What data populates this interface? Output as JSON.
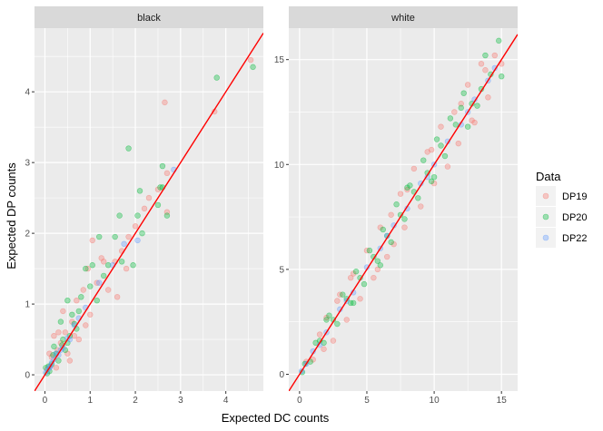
{
  "chart_data": {
    "type": "scatter",
    "xlabel": "Expected DC counts",
    "ylabel": "Expected DP counts",
    "reference_line": {
      "slope": 1,
      "intercept": 0,
      "color": "#ff0000"
    },
    "legend": {
      "title": "Data",
      "position": "right",
      "entries": [
        {
          "name": "DP19",
          "color": "#f8766d"
        },
        {
          "name": "DP20",
          "color": "#00ba38"
        },
        {
          "name": "DP22",
          "color": "#619cff"
        }
      ]
    },
    "panels": [
      {
        "label": "black",
        "xlim": [
          -0.23,
          4.83
        ],
        "ylim": [
          -0.23,
          4.9
        ],
        "xticks": [
          0,
          1,
          2,
          3,
          4
        ],
        "yticks": [
          0,
          1,
          2,
          3,
          4
        ],
        "x_tick_labels": [
          "0",
          "1",
          "2",
          "3",
          "4"
        ],
        "y_tick_labels": [
          "0",
          "1",
          "2",
          "3",
          "4"
        ],
        "series": [
          {
            "name": "DP19",
            "points": [
              [
                4.55,
                4.45
              ],
              [
                2.65,
                3.85
              ],
              [
                3.75,
                3.72
              ],
              [
                2.7,
                2.85
              ],
              [
                2.2,
                2.35
              ],
              [
                1.3,
                1.6
              ],
              [
                1.05,
                1.9
              ],
              [
                0.95,
                1.5
              ],
              [
                1.55,
                1.6
              ],
              [
                2.5,
                2.62
              ],
              [
                1.6,
                1.1
              ],
              [
                1.15,
                1.3
              ],
              [
                0.4,
                0.9
              ],
              [
                0.6,
                0.75
              ],
              [
                0.3,
                0.6
              ],
              [
                0.75,
                0.5
              ],
              [
                0.2,
                0.55
              ],
              [
                0.5,
                0.3
              ],
              [
                1.4,
                1.2
              ],
              [
                2.0,
                2.1
              ],
              [
                0.85,
                1.2
              ],
              [
                0.15,
                0.25
              ],
              [
                0.25,
                0.1
              ],
              [
                0.35,
                0.45
              ],
              [
                0.1,
                0.3
              ],
              [
                1.25,
                1.65
              ],
              [
                0.7,
                1.05
              ],
              [
                0.55,
                0.2
              ],
              [
                2.7,
                2.3
              ],
              [
                1.85,
                1.95
              ],
              [
                0.45,
                0.6
              ],
              [
                0.05,
                0.08
              ],
              [
                0.12,
                0.12
              ],
              [
                0.28,
                0.35
              ],
              [
                0.65,
                0.55
              ],
              [
                1.0,
                0.85
              ],
              [
                1.7,
                1.75
              ],
              [
                1.8,
                1.5
              ],
              [
                0.9,
                0.7
              ],
              [
                2.3,
                2.5
              ]
            ]
          },
          {
            "name": "DP20",
            "points": [
              [
                3.8,
                4.2
              ],
              [
                4.6,
                4.35
              ],
              [
                2.6,
                2.95
              ],
              [
                1.85,
                3.2
              ],
              [
                2.1,
                2.6
              ],
              [
                2.6,
                2.65
              ],
              [
                1.65,
                2.25
              ],
              [
                2.05,
                2.25
              ],
              [
                1.55,
                1.95
              ],
              [
                1.2,
                1.95
              ],
              [
                0.9,
                1.5
              ],
              [
                1.05,
                1.55
              ],
              [
                1.4,
                1.55
              ],
              [
                1.95,
                1.55
              ],
              [
                2.7,
                2.25
              ],
              [
                0.5,
                1.05
              ],
              [
                0.35,
                0.75
              ],
              [
                0.4,
                0.5
              ],
              [
                0.6,
                0.85
              ],
              [
                0.7,
                0.65
              ],
              [
                0.2,
                0.4
              ],
              [
                0.25,
                0.3
              ],
              [
                0.15,
                0.15
              ],
              [
                0.1,
                0.05
              ],
              [
                0.3,
                0.2
              ],
              [
                0.55,
                0.55
              ],
              [
                0.45,
                0.35
              ],
              [
                0.8,
                1.1
              ],
              [
                1.0,
                1.25
              ],
              [
                2.5,
                2.4
              ],
              [
                2.55,
                2.65
              ],
              [
                0.05,
                0.02
              ],
              [
                0.18,
                0.28
              ],
              [
                0.38,
                0.42
              ],
              [
                0.65,
                0.72
              ],
              [
                1.15,
                1.05
              ],
              [
                1.3,
                1.4
              ],
              [
                0.75,
                0.9
              ],
              [
                0.08,
                0.12
              ],
              [
                0.5,
                0.45
              ],
              [
                0.02,
                0.1
              ],
              [
                1.7,
                1.6
              ],
              [
                2.15,
                2.0
              ]
            ]
          },
          {
            "name": "DP22",
            "points": [
              [
                2.85,
                2.9
              ],
              [
                2.05,
                1.9
              ],
              [
                1.75,
                1.85
              ],
              [
                1.2,
                1.3
              ],
              [
                0.9,
                0.95
              ],
              [
                0.65,
                0.7
              ],
              [
                0.5,
                0.52
              ],
              [
                0.4,
                0.38
              ],
              [
                0.3,
                0.28
              ],
              [
                0.2,
                0.22
              ],
              [
                0.12,
                0.12
              ],
              [
                0.06,
                0.07
              ],
              [
                0.25,
                0.3
              ],
              [
                0.55,
                0.5
              ],
              [
                0.75,
                0.8
              ],
              [
                0.1,
                0.1
              ],
              [
                0.35,
                0.35
              ],
              [
                1.5,
                1.55
              ],
              [
                0.02,
                0.03
              ],
              [
                0.15,
                0.17
              ]
            ]
          }
        ]
      },
      {
        "label": "white",
        "xlim": [
          -0.8,
          16.2
        ],
        "ylim": [
          -0.8,
          16.5
        ],
        "xticks": [
          0,
          5,
          10,
          15
        ],
        "yticks": [
          0,
          5,
          10,
          15
        ],
        "x_tick_labels": [
          "0",
          "5",
          "10",
          "15"
        ],
        "y_tick_labels": [
          "0",
          "5",
          "10",
          "15"
        ],
        "series": [
          {
            "name": "DP19",
            "points": [
              [
                15.0,
                14.8
              ],
              [
                14.5,
                15.2
              ],
              [
                13.5,
                14.8
              ],
              [
                12.5,
                13.8
              ],
              [
                13.0,
                12.0
              ],
              [
                11.5,
                12.5
              ],
              [
                10.5,
                11.8
              ],
              [
                11.0,
                9.9
              ],
              [
                9.5,
                10.6
              ],
              [
                8.5,
                9.8
              ],
              [
                9.0,
                8.0
              ],
              [
                7.5,
                8.6
              ],
              [
                7.0,
                6.2
              ],
              [
                6.0,
                7.0
              ],
              [
                6.5,
                5.6
              ],
              [
                5.0,
                5.9
              ],
              [
                5.5,
                4.6
              ],
              [
                4.0,
                4.8
              ],
              [
                4.5,
                3.6
              ],
              [
                3.0,
                3.8
              ],
              [
                3.5,
                2.6
              ],
              [
                2.0,
                2.7
              ],
              [
                2.5,
                1.6
              ],
              [
                1.5,
                1.9
              ],
              [
                1.0,
                0.7
              ],
              [
                0.5,
                0.6
              ],
              [
                12.0,
                12.9
              ],
              [
                8.0,
                8.8
              ],
              [
                10.0,
                9.1
              ],
              [
                6.8,
                7.6
              ],
              [
                14.0,
                13.2
              ],
              [
                3.8,
                4.6
              ],
              [
                1.8,
                1.2
              ],
              [
                11.8,
                11.0
              ],
              [
                13.8,
                14.5
              ],
              [
                5.8,
                5.0
              ],
              [
                9.8,
                10.7
              ],
              [
                7.8,
                7.0
              ],
              [
                2.8,
                3.5
              ],
              [
                12.8,
                12.1
              ]
            ]
          },
          {
            "name": "DP20",
            "points": [
              [
                14.8,
                15.9
              ],
              [
                15.0,
                14.2
              ],
              [
                13.8,
                15.2
              ],
              [
                13.2,
                12.8
              ],
              [
                12.2,
                13.4
              ],
              [
                12.5,
                11.8
              ],
              [
                11.2,
                12.2
              ],
              [
                10.8,
                10.4
              ],
              [
                10.2,
                11.2
              ],
              [
                9.8,
                9.2
              ],
              [
                9.2,
                10.2
              ],
              [
                8.8,
                8.4
              ],
              [
                8.2,
                9.0
              ],
              [
                7.8,
                7.4
              ],
              [
                7.2,
                8.1
              ],
              [
                6.8,
                6.3
              ],
              [
                6.2,
                6.9
              ],
              [
                5.8,
                5.4
              ],
              [
                5.2,
                5.9
              ],
              [
                4.8,
                4.3
              ],
              [
                4.2,
                4.9
              ],
              [
                3.8,
                3.4
              ],
              [
                3.2,
                3.8
              ],
              [
                2.8,
                2.4
              ],
              [
                2.2,
                2.8
              ],
              [
                1.8,
                1.5
              ],
              [
                1.2,
                1.5
              ],
              [
                0.8,
                0.6
              ],
              [
                0.4,
                0.5
              ],
              [
                0.2,
                0.1
              ],
              [
                11.6,
                11.9
              ],
              [
                10.5,
                10.9
              ],
              [
                9.5,
                9.6
              ],
              [
                8.5,
                8.7
              ],
              [
                7.5,
                7.6
              ],
              [
                6.5,
                6.6
              ],
              [
                5.5,
                5.6
              ],
              [
                4.5,
                4.6
              ],
              [
                3.5,
                3.6
              ],
              [
                2.5,
                2.6
              ],
              [
                1.5,
                1.6
              ],
              [
                13.5,
                13.6
              ],
              [
                12.8,
                12.9
              ],
              [
                14.2,
                14.3
              ],
              [
                6.0,
                5.2
              ],
              [
                8.0,
                8.9
              ],
              [
                10.0,
                9.4
              ],
              [
                12.0,
                12.7
              ],
              [
                4.0,
                3.4
              ],
              [
                2.0,
                2.6
              ]
            ]
          },
          {
            "name": "DP22",
            "points": [
              [
                14.0,
                14.0
              ],
              [
                13.0,
                13.1
              ],
              [
                12.0,
                11.9
              ],
              [
                11.0,
                11.1
              ],
              [
                10.0,
                10.0
              ],
              [
                9.0,
                9.1
              ],
              [
                8.0,
                7.9
              ],
              [
                7.0,
                7.1
              ],
              [
                6.0,
                6.0
              ],
              [
                5.0,
                5.1
              ],
              [
                4.0,
                3.9
              ],
              [
                3.0,
                3.1
              ],
              [
                2.0,
                2.0
              ],
              [
                1.0,
                1.1
              ],
              [
                0.5,
                0.5
              ],
              [
                0.15,
                0.15
              ],
              [
                14.5,
                14.6
              ],
              [
                12.5,
                12.5
              ],
              [
                9.5,
                9.4
              ],
              [
                6.5,
                6.6
              ],
              [
                3.5,
                3.5
              ],
              [
                1.5,
                1.4
              ]
            ]
          }
        ]
      }
    ]
  }
}
